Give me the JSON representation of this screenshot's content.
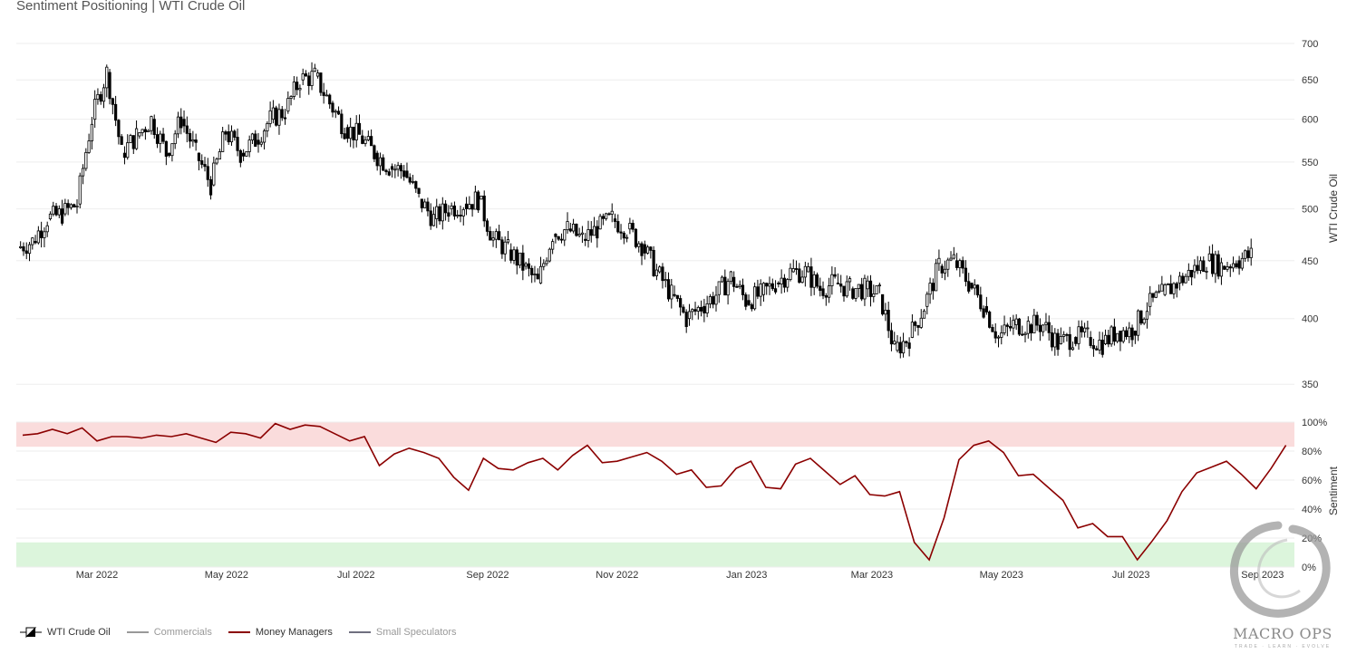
{
  "title": "Sentiment Positioning | WTI Crude Oil",
  "colors": {
    "candle": "#000000",
    "money_managers": "#8b0000",
    "commercials": "#999999",
    "small_speculators": "#6f6f7f",
    "overbought_zone": "#fadcdc",
    "oversold_zone": "#dcf5dc",
    "grid": "#eeeeee"
  },
  "legend": {
    "wti": "WTI Crude Oil",
    "commercials": "Commercials",
    "money_managers": "Money Managers",
    "small_speculators": "Small Speculators"
  },
  "logo": {
    "name": "MACRO OPS",
    "tagline": "TRADE · LEARN · EVOLVE"
  },
  "chart_data": [
    {
      "type": "candlestick",
      "ylabel": "WTI Crude Oil",
      "y_scale": "log",
      "y_ticks": [
        350,
        400,
        450,
        500,
        550,
        600,
        650,
        700
      ],
      "ylim": [
        345,
        700
      ],
      "x_range": [
        "2022-01-24",
        "2023-09-12"
      ],
      "weekly_close": [
        {
          "date": "2022-01-24",
          "v": 462
        },
        {
          "date": "2022-01-31",
          "v": 468
        },
        {
          "date": "2022-02-07",
          "v": 490
        },
        {
          "date": "2022-02-14",
          "v": 495
        },
        {
          "date": "2022-02-21",
          "v": 505
        },
        {
          "date": "2022-02-28",
          "v": 600
        },
        {
          "date": "2022-03-07",
          "v": 660
        },
        {
          "date": "2022-03-14",
          "v": 560
        },
        {
          "date": "2022-03-21",
          "v": 580
        },
        {
          "date": "2022-03-28",
          "v": 600
        },
        {
          "date": "2022-04-04",
          "v": 560
        },
        {
          "date": "2022-04-11",
          "v": 600
        },
        {
          "date": "2022-04-18",
          "v": 560
        },
        {
          "date": "2022-04-25",
          "v": 525
        },
        {
          "date": "2022-05-02",
          "v": 585
        },
        {
          "date": "2022-05-09",
          "v": 560
        },
        {
          "date": "2022-05-16",
          "v": 575
        },
        {
          "date": "2022-05-23",
          "v": 600
        },
        {
          "date": "2022-05-30",
          "v": 610
        },
        {
          "date": "2022-06-06",
          "v": 650
        },
        {
          "date": "2022-06-13",
          "v": 655
        },
        {
          "date": "2022-06-20",
          "v": 620
        },
        {
          "date": "2022-06-27",
          "v": 590
        },
        {
          "date": "2022-07-04",
          "v": 580
        },
        {
          "date": "2022-07-11",
          "v": 560
        },
        {
          "date": "2022-07-18",
          "v": 545
        },
        {
          "date": "2022-07-25",
          "v": 540
        },
        {
          "date": "2022-08-01",
          "v": 510
        },
        {
          "date": "2022-08-08",
          "v": 490
        },
        {
          "date": "2022-08-15",
          "v": 500
        },
        {
          "date": "2022-08-22",
          "v": 505
        },
        {
          "date": "2022-08-29",
          "v": 510
        },
        {
          "date": "2022-09-05",
          "v": 470
        },
        {
          "date": "2022-09-12",
          "v": 460
        },
        {
          "date": "2022-09-19",
          "v": 445
        },
        {
          "date": "2022-09-26",
          "v": 430
        },
        {
          "date": "2022-10-03",
          "v": 475
        },
        {
          "date": "2022-10-10",
          "v": 480
        },
        {
          "date": "2022-10-17",
          "v": 470
        },
        {
          "date": "2022-10-24",
          "v": 480
        },
        {
          "date": "2022-10-31",
          "v": 490
        },
        {
          "date": "2022-11-07",
          "v": 480
        },
        {
          "date": "2022-11-14",
          "v": 465
        },
        {
          "date": "2022-11-21",
          "v": 440
        },
        {
          "date": "2022-11-28",
          "v": 420
        },
        {
          "date": "2022-12-05",
          "v": 400
        },
        {
          "date": "2022-12-12",
          "v": 410
        },
        {
          "date": "2022-12-19",
          "v": 420
        },
        {
          "date": "2022-12-26",
          "v": 435
        },
        {
          "date": "2023-01-02",
          "v": 415
        },
        {
          "date": "2023-01-09",
          "v": 420
        },
        {
          "date": "2023-01-16",
          "v": 430
        },
        {
          "date": "2023-01-23",
          "v": 440
        },
        {
          "date": "2023-01-30",
          "v": 440
        },
        {
          "date": "2023-02-06",
          "v": 425
        },
        {
          "date": "2023-02-13",
          "v": 430
        },
        {
          "date": "2023-02-20",
          "v": 425
        },
        {
          "date": "2023-02-27",
          "v": 425
        },
        {
          "date": "2023-03-06",
          "v": 420
        },
        {
          "date": "2023-03-13",
          "v": 375
        },
        {
          "date": "2023-03-20",
          "v": 385
        },
        {
          "date": "2023-03-27",
          "v": 410
        },
        {
          "date": "2023-04-03",
          "v": 445
        },
        {
          "date": "2023-04-10",
          "v": 450
        },
        {
          "date": "2023-04-17",
          "v": 430
        },
        {
          "date": "2023-04-24",
          "v": 410
        },
        {
          "date": "2023-05-01",
          "v": 385
        },
        {
          "date": "2023-05-08",
          "v": 395
        },
        {
          "date": "2023-05-15",
          "v": 395
        },
        {
          "date": "2023-05-22",
          "v": 395
        },
        {
          "date": "2023-05-29",
          "v": 380
        },
        {
          "date": "2023-06-05",
          "v": 385
        },
        {
          "date": "2023-06-12",
          "v": 385
        },
        {
          "date": "2023-06-19",
          "v": 380
        },
        {
          "date": "2023-06-26",
          "v": 390
        },
        {
          "date": "2023-07-03",
          "v": 390
        },
        {
          "date": "2023-07-10",
          "v": 410
        },
        {
          "date": "2023-07-17",
          "v": 420
        },
        {
          "date": "2023-07-24",
          "v": 430
        },
        {
          "date": "2023-07-31",
          "v": 440
        },
        {
          "date": "2023-08-07",
          "v": 450
        },
        {
          "date": "2023-08-14",
          "v": 445
        },
        {
          "date": "2023-08-21",
          "v": 450
        },
        {
          "date": "2023-08-28",
          "v": 455
        }
      ]
    },
    {
      "type": "line",
      "ylabel": "Sentiment",
      "y_ticks": [
        "0%",
        "20%",
        "40%",
        "60%",
        "80%",
        "100%"
      ],
      "ylim": [
        0,
        100
      ],
      "overbought_band": [
        83,
        100
      ],
      "oversold_band": [
        0,
        17
      ],
      "x_ticks": [
        "Mar 2022",
        "May 2022",
        "Jul 2022",
        "Sep 2022",
        "Nov 2022",
        "Jan 2023",
        "Mar 2023",
        "May 2023",
        "Jul 2023",
        "Sep 2023"
      ],
      "series": [
        {
          "name": "Money Managers",
          "values": [
            {
              "date": "2022-01-25",
              "v": 91
            },
            {
              "date": "2022-02-01",
              "v": 92
            },
            {
              "date": "2022-02-08",
              "v": 95
            },
            {
              "date": "2022-02-15",
              "v": 92
            },
            {
              "date": "2022-02-22",
              "v": 96
            },
            {
              "date": "2022-03-01",
              "v": 87
            },
            {
              "date": "2022-03-08",
              "v": 90
            },
            {
              "date": "2022-03-15",
              "v": 90
            },
            {
              "date": "2022-03-22",
              "v": 89
            },
            {
              "date": "2022-03-29",
              "v": 91
            },
            {
              "date": "2022-04-05",
              "v": 90
            },
            {
              "date": "2022-04-12",
              "v": 92
            },
            {
              "date": "2022-04-19",
              "v": 89
            },
            {
              "date": "2022-04-26",
              "v": 86
            },
            {
              "date": "2022-05-03",
              "v": 93
            },
            {
              "date": "2022-05-10",
              "v": 92
            },
            {
              "date": "2022-05-17",
              "v": 89
            },
            {
              "date": "2022-05-24",
              "v": 99
            },
            {
              "date": "2022-05-31",
              "v": 95
            },
            {
              "date": "2022-06-07",
              "v": 98
            },
            {
              "date": "2022-06-14",
              "v": 97
            },
            {
              "date": "2022-06-21",
              "v": 92
            },
            {
              "date": "2022-06-28",
              "v": 87
            },
            {
              "date": "2022-07-05",
              "v": 90
            },
            {
              "date": "2022-07-12",
              "v": 70
            },
            {
              "date": "2022-07-19",
              "v": 78
            },
            {
              "date": "2022-07-26",
              "v": 82
            },
            {
              "date": "2022-08-02",
              "v": 79
            },
            {
              "date": "2022-08-09",
              "v": 75
            },
            {
              "date": "2022-08-16",
              "v": 62
            },
            {
              "date": "2022-08-23",
              "v": 53
            },
            {
              "date": "2022-08-30",
              "v": 75
            },
            {
              "date": "2022-09-06",
              "v": 68
            },
            {
              "date": "2022-09-13",
              "v": 67
            },
            {
              "date": "2022-09-20",
              "v": 72
            },
            {
              "date": "2022-09-27",
              "v": 75
            },
            {
              "date": "2022-10-04",
              "v": 67
            },
            {
              "date": "2022-10-11",
              "v": 77
            },
            {
              "date": "2022-10-18",
              "v": 84
            },
            {
              "date": "2022-10-25",
              "v": 72
            },
            {
              "date": "2022-11-01",
              "v": 73
            },
            {
              "date": "2022-11-08",
              "v": 76
            },
            {
              "date": "2022-11-15",
              "v": 79
            },
            {
              "date": "2022-11-22",
              "v": 73
            },
            {
              "date": "2022-11-29",
              "v": 64
            },
            {
              "date": "2022-12-06",
              "v": 67
            },
            {
              "date": "2022-12-13",
              "v": 55
            },
            {
              "date": "2022-12-20",
              "v": 56
            },
            {
              "date": "2022-12-27",
              "v": 68
            },
            {
              "date": "2023-01-03",
              "v": 73
            },
            {
              "date": "2023-01-10",
              "v": 55
            },
            {
              "date": "2023-01-17",
              "v": 54
            },
            {
              "date": "2023-01-24",
              "v": 71
            },
            {
              "date": "2023-01-31",
              "v": 75
            },
            {
              "date": "2023-02-07",
              "v": 66
            },
            {
              "date": "2023-02-14",
              "v": 57
            },
            {
              "date": "2023-02-21",
              "v": 63
            },
            {
              "date": "2023-02-28",
              "v": 50
            },
            {
              "date": "2023-03-07",
              "v": 49
            },
            {
              "date": "2023-03-14",
              "v": 52
            },
            {
              "date": "2023-03-21",
              "v": 17
            },
            {
              "date": "2023-03-28",
              "v": 5
            },
            {
              "date": "2023-04-04",
              "v": 34
            },
            {
              "date": "2023-04-11",
              "v": 74
            },
            {
              "date": "2023-04-18",
              "v": 84
            },
            {
              "date": "2023-04-25",
              "v": 87
            },
            {
              "date": "2023-05-02",
              "v": 79
            },
            {
              "date": "2023-05-09",
              "v": 63
            },
            {
              "date": "2023-05-16",
              "v": 64
            },
            {
              "date": "2023-05-23",
              "v": 55
            },
            {
              "date": "2023-05-30",
              "v": 46
            },
            {
              "date": "2023-06-06",
              "v": 27
            },
            {
              "date": "2023-06-13",
              "v": 30
            },
            {
              "date": "2023-06-20",
              "v": 21
            },
            {
              "date": "2023-06-27",
              "v": 21
            },
            {
              "date": "2023-07-04",
              "v": 5
            },
            {
              "date": "2023-07-11",
              "v": 18
            },
            {
              "date": "2023-07-18",
              "v": 32
            },
            {
              "date": "2023-07-25",
              "v": 52
            },
            {
              "date": "2023-08-01",
              "v": 65
            },
            {
              "date": "2023-08-08",
              "v": 69
            },
            {
              "date": "2023-08-15",
              "v": 73
            },
            {
              "date": "2023-08-22",
              "v": 64
            },
            {
              "date": "2023-08-29",
              "v": 54
            },
            {
              "date": "2023-09-05",
              "v": 68
            },
            {
              "date": "2023-09-12",
              "v": 84
            }
          ]
        }
      ]
    }
  ]
}
